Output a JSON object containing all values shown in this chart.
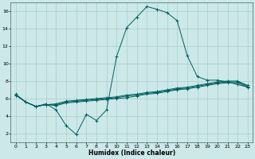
{
  "xlabel": "Humidex (Indice chaleur)",
  "background_color": "#cce8e8",
  "grid_color": "#aacccc",
  "line_color": "#006060",
  "xlim": [
    -0.5,
    23.5
  ],
  "ylim": [
    1.0,
    17.0
  ],
  "yticks": [
    2,
    4,
    6,
    8,
    10,
    12,
    14,
    16
  ],
  "xticks": [
    0,
    1,
    2,
    3,
    4,
    5,
    6,
    7,
    8,
    9,
    10,
    11,
    12,
    13,
    14,
    15,
    16,
    17,
    18,
    19,
    20,
    21,
    22,
    23
  ],
  "line1_x": [
    0,
    1,
    2,
    3,
    4,
    5,
    6,
    7,
    8,
    9,
    10,
    11,
    12,
    13,
    14,
    15,
    16,
    17,
    18,
    19,
    20,
    21,
    22,
    23
  ],
  "line1_y": [
    6.5,
    5.6,
    5.1,
    5.4,
    4.7,
    2.9,
    1.9,
    4.2,
    3.5,
    4.7,
    10.8,
    14.1,
    15.3,
    16.5,
    16.2,
    15.8,
    14.9,
    10.9,
    8.5,
    8.1,
    8.1,
    7.9,
    7.6,
    7.3
  ],
  "line2_x": [
    0,
    1,
    2,
    3,
    4,
    5,
    6,
    7,
    8,
    9,
    10,
    11,
    12,
    13,
    14,
    15,
    16,
    17,
    18,
    19,
    20,
    21,
    22,
    23
  ],
  "line2_y": [
    6.4,
    5.6,
    5.1,
    5.3,
    5.2,
    5.5,
    5.6,
    5.7,
    5.8,
    5.9,
    6.0,
    6.1,
    6.3,
    6.5,
    6.6,
    6.8,
    7.0,
    7.1,
    7.3,
    7.5,
    7.7,
    7.8,
    7.8,
    7.3
  ],
  "line3_x": [
    0,
    1,
    2,
    3,
    4,
    5,
    6,
    7,
    8,
    9,
    10,
    11,
    12,
    13,
    14,
    15,
    16,
    17,
    18,
    19,
    20,
    21,
    22,
    23
  ],
  "line3_y": [
    6.4,
    5.6,
    5.1,
    5.3,
    5.3,
    5.6,
    5.7,
    5.8,
    5.9,
    6.0,
    6.1,
    6.3,
    6.4,
    6.6,
    6.7,
    6.9,
    7.1,
    7.2,
    7.4,
    7.6,
    7.8,
    7.9,
    7.9,
    7.4
  ],
  "line4_x": [
    0,
    1,
    2,
    3,
    4,
    5,
    6,
    7,
    8,
    9,
    10,
    11,
    12,
    13,
    14,
    15,
    16,
    17,
    18,
    19,
    20,
    21,
    22,
    23
  ],
  "line4_y": [
    6.4,
    5.6,
    5.1,
    5.3,
    5.4,
    5.7,
    5.8,
    5.9,
    6.0,
    6.1,
    6.2,
    6.4,
    6.5,
    6.7,
    6.8,
    7.0,
    7.2,
    7.3,
    7.5,
    7.7,
    7.9,
    8.0,
    8.0,
    7.5
  ]
}
